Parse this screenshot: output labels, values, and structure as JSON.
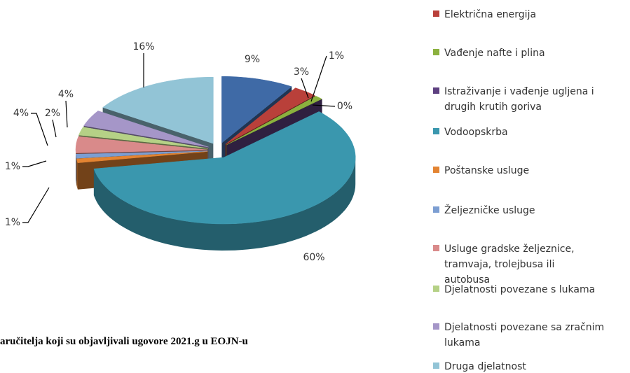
{
  "chart_data": {
    "type": "pie3d",
    "caption": "aručitelja koji su objavljivali ugovore 2021.g u EOJN-u",
    "categories": [
      null,
      "Električna energija",
      "Vađenje nafte i plina",
      "Istraživanje i vađenje ugljena i drugih krutih goriva",
      "Vodoopskrba",
      "Poštanske usluge",
      "Željezničke usluge",
      "Usluge gradske željeznice, tramvaja, trolejbusa ili autobusa",
      "Djelatnosti povezane s lukama",
      "Djelatnosti povezane sa zračnim lukama",
      "Druga djelatnost"
    ],
    "values": [
      9,
      3,
      1,
      0,
      60,
      1,
      1,
      4,
      2,
      4,
      16
    ],
    "value_labels": [
      "9%",
      "3%",
      "1%",
      "0%",
      "60%",
      "1%",
      "1%",
      "4%",
      "2%",
      "4%",
      "16%"
    ],
    "colors": [
      "#3f6aa6",
      "#b9403a",
      "#8bb13e",
      "#5d4080",
      "#3a97ae",
      "#e38432",
      "#7c9ed2",
      "#d98a8a",
      "#b5d186",
      "#a596c8",
      "#92c4d6"
    ]
  }
}
